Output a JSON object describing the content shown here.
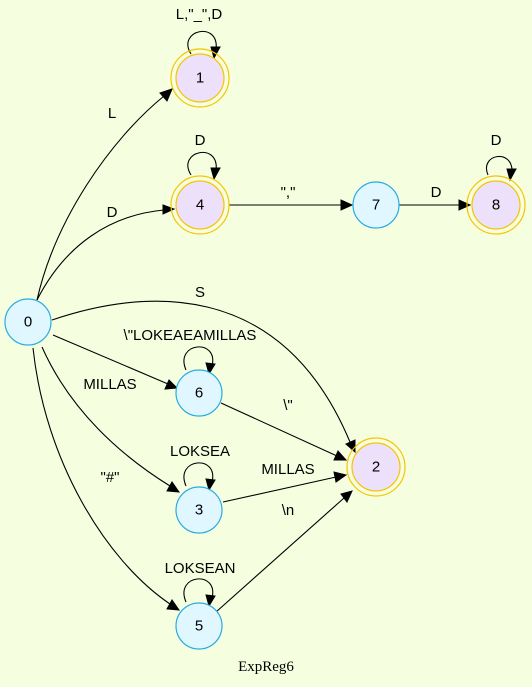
{
  "graph": {
    "title": "ExpReg6",
    "nodes": [
      {
        "id": "0",
        "label": "0",
        "accepting": false
      },
      {
        "id": "1",
        "label": "1",
        "accepting": true
      },
      {
        "id": "4",
        "label": "4",
        "accepting": true
      },
      {
        "id": "7",
        "label": "7",
        "accepting": false
      },
      {
        "id": "8",
        "label": "8",
        "accepting": true
      },
      {
        "id": "6",
        "label": "6",
        "accepting": false
      },
      {
        "id": "2",
        "label": "2",
        "accepting": true
      },
      {
        "id": "3",
        "label": "3",
        "accepting": false
      },
      {
        "id": "5",
        "label": "5",
        "accepting": false
      }
    ],
    "edges": [
      {
        "from": "0",
        "to": "1",
        "label": "L"
      },
      {
        "from": "0",
        "to": "4",
        "label": "D"
      },
      {
        "from": "0",
        "to": "2",
        "label": "S"
      },
      {
        "from": "0",
        "to": "6",
        "label": "\\\"LOKEAEAMILLAS"
      },
      {
        "from": "0",
        "to": "3",
        "label": "MILLAS"
      },
      {
        "from": "0",
        "to": "5",
        "label": "\"#\""
      },
      {
        "from": "1",
        "to": "1",
        "label": "L,\"_\",D"
      },
      {
        "from": "4",
        "to": "4",
        "label": "D"
      },
      {
        "from": "4",
        "to": "7",
        "label": "\",\""
      },
      {
        "from": "7",
        "to": "8",
        "label": "D"
      },
      {
        "from": "8",
        "to": "8",
        "label": "D"
      },
      {
        "from": "6",
        "to": "6",
        "label": "\\\"LOKEAEAMILLAS"
      },
      {
        "from": "6",
        "to": "2",
        "label": "\\\""
      },
      {
        "from": "3",
        "to": "3",
        "label": "LOKSEA"
      },
      {
        "from": "3",
        "to": "2",
        "label": "MILLAS"
      },
      {
        "from": "5",
        "to": "5",
        "label": "LOKSEAN"
      },
      {
        "from": "5",
        "to": "2",
        "label": "\\n"
      }
    ]
  }
}
